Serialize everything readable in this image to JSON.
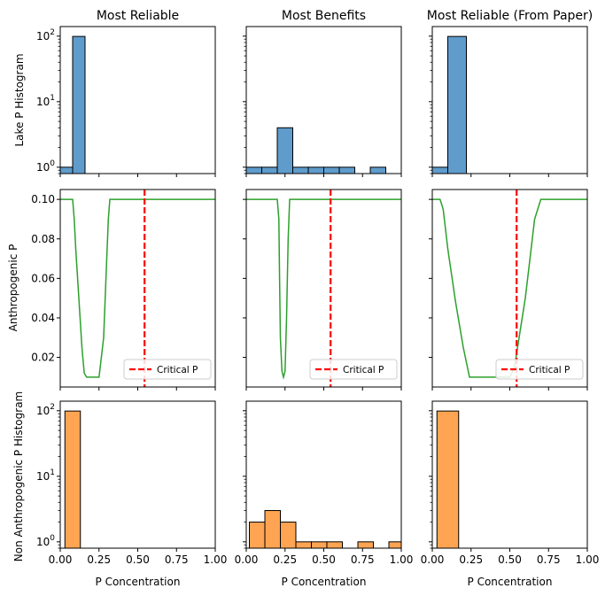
{
  "figure": {
    "columns": [
      "Most Reliable",
      "Most Benefits",
      "Most Reliable (From Paper)"
    ],
    "row_ylabels": [
      "Lake P Histogram",
      "Anthropogenic P",
      "Non Anthropogenic P Histogram"
    ],
    "xlabel": "P Concentration"
  },
  "colors": {
    "lake_hist": "#5f9ccc",
    "policy_line": "#2ca02c",
    "critical_line": "#ff0000",
    "nonanthro_hist": "#fea452"
  },
  "chart_data": [
    {
      "type": "bar",
      "panel": "lake-hist-1",
      "title": "Most Reliable",
      "ylabel": "Lake P Histogram",
      "yscale": "log",
      "ylim": [
        0.8,
        140
      ],
      "xlim": [
        0,
        1
      ],
      "x_ticks": [
        0.0,
        0.25,
        0.5,
        0.75,
        1.0
      ],
      "y_ticks": [
        1,
        10,
        100
      ],
      "y_tick_labels": [
        "10^0",
        "10^1",
        "10^2"
      ],
      "bins": [
        [
          0.0,
          0.08,
          1
        ],
        [
          0.08,
          0.16,
          99
        ]
      ]
    },
    {
      "type": "bar",
      "panel": "lake-hist-2",
      "title": "Most Benefits",
      "yscale": "log",
      "ylim": [
        0.8,
        140
      ],
      "xlim": [
        0,
        1
      ],
      "bins": [
        [
          0.0,
          0.1,
          1
        ],
        [
          0.1,
          0.2,
          1
        ],
        [
          0.2,
          0.3,
          4
        ],
        [
          0.3,
          0.4,
          1
        ],
        [
          0.4,
          0.5,
          1
        ],
        [
          0.5,
          0.6,
          1
        ],
        [
          0.6,
          0.7,
          1
        ],
        [
          0.8,
          0.9,
          1
        ]
      ]
    },
    {
      "type": "bar",
      "panel": "lake-hist-3",
      "title": "Most Reliable (From Paper)",
      "yscale": "log",
      "ylim": [
        0.8,
        140
      ],
      "xlim": [
        0,
        1
      ],
      "bins": [
        [
          0.0,
          0.1,
          1
        ],
        [
          0.1,
          0.22,
          99
        ]
      ]
    },
    {
      "type": "line",
      "panel": "policy-1",
      "ylabel": "Anthropogenic P",
      "xlim": [
        0,
        1
      ],
      "ylim": [
        0.005,
        0.105
      ],
      "y_ticks": [
        0.02,
        0.04,
        0.06,
        0.08,
        0.1
      ],
      "y_tick_labels": [
        "0.02",
        "0.04",
        "0.06",
        "0.08",
        "0.10"
      ],
      "critical_p": 0.544,
      "legend": "Critical P",
      "legend_loc": "lower right",
      "x": [
        0.0,
        0.08,
        0.09,
        0.1,
        0.12,
        0.14,
        0.155,
        0.17,
        0.2,
        0.23,
        0.25,
        0.28,
        0.3,
        0.31,
        0.32,
        0.4,
        1.0
      ],
      "y": [
        0.1,
        0.1,
        0.09,
        0.075,
        0.05,
        0.025,
        0.012,
        0.01,
        0.01,
        0.01,
        0.01,
        0.03,
        0.07,
        0.09,
        0.1,
        0.1,
        0.1
      ]
    },
    {
      "type": "line",
      "panel": "policy-2",
      "xlim": [
        0,
        1
      ],
      "ylim": [
        0.005,
        0.105
      ],
      "critical_p": 0.544,
      "legend": "Critical P",
      "legend_loc": "lower right",
      "x": [
        0.0,
        0.2,
        0.21,
        0.215,
        0.22,
        0.23,
        0.24,
        0.25,
        0.26,
        0.27,
        0.28,
        0.3,
        1.0
      ],
      "y": [
        0.1,
        0.1,
        0.09,
        0.06,
        0.03,
        0.013,
        0.01,
        0.013,
        0.04,
        0.08,
        0.1,
        0.1,
        0.1
      ]
    },
    {
      "type": "line",
      "panel": "policy-3",
      "xlim": [
        0,
        1
      ],
      "ylim": [
        0.005,
        0.105
      ],
      "critical_p": 0.544,
      "legend": "Critical P",
      "legend_loc": "lower right",
      "x": [
        0.0,
        0.05,
        0.07,
        0.1,
        0.15,
        0.2,
        0.24,
        0.3,
        0.4,
        0.5,
        0.53,
        0.56,
        0.6,
        0.63,
        0.66,
        0.7,
        1.0
      ],
      "y": [
        0.1,
        0.1,
        0.095,
        0.075,
        0.048,
        0.025,
        0.01,
        0.01,
        0.01,
        0.01,
        0.015,
        0.03,
        0.05,
        0.07,
        0.09,
        0.1,
        0.1
      ]
    },
    {
      "type": "bar",
      "panel": "nonanthro-hist-1",
      "ylabel": "Non Anthropogenic P Histogram",
      "yscale": "log",
      "ylim": [
        0.8,
        140
      ],
      "xlim": [
        0,
        1
      ],
      "x_ticks": [
        0.0,
        0.25,
        0.5,
        0.75,
        1.0
      ],
      "x_tick_labels": [
        "0.00",
        "0.25",
        "0.50",
        "0.75",
        "1.00"
      ],
      "y_ticks": [
        1,
        10,
        100
      ],
      "y_tick_labels": [
        "10^0",
        "10^1",
        "10^2"
      ],
      "xlabel": "P Concentration",
      "bins": [
        [
          0.03,
          0.13,
          99
        ]
      ]
    },
    {
      "type": "bar",
      "panel": "nonanthro-hist-2",
      "xlabel": "P Concentration",
      "yscale": "log",
      "ylim": [
        0.8,
        140
      ],
      "xlim": [
        0,
        1
      ],
      "bins": [
        [
          0.02,
          0.12,
          2
        ],
        [
          0.12,
          0.22,
          3
        ],
        [
          0.22,
          0.32,
          2
        ],
        [
          0.32,
          0.42,
          1
        ],
        [
          0.42,
          0.52,
          1
        ],
        [
          0.52,
          0.62,
          1
        ],
        [
          0.72,
          0.82,
          1
        ],
        [
          0.92,
          1.02,
          1
        ]
      ]
    },
    {
      "type": "bar",
      "panel": "nonanthro-hist-3",
      "xlabel": "P Concentration",
      "yscale": "log",
      "ylim": [
        0.8,
        140
      ],
      "xlim": [
        0,
        1
      ],
      "bins": [
        [
          0.03,
          0.17,
          99
        ]
      ]
    }
  ]
}
